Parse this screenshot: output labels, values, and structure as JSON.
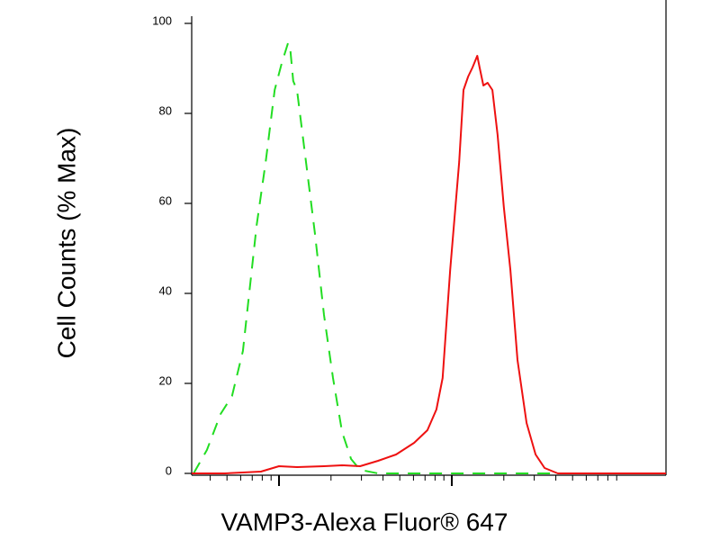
{
  "chart_data": {
    "type": "line",
    "x_label": "VAMP3-Alexa Fluor® 647",
    "y_label": "Cell Counts (% Max)",
    "xlim": [
      0,
      100
    ],
    "ylim": [
      0,
      100
    ],
    "yticks": [
      0,
      20,
      40,
      60,
      80,
      100
    ],
    "series": [
      {
        "color": "#22dd22",
        "dashed": true,
        "x": [
          0.4,
          3.2,
          6.1,
          8.5,
          10.8,
          13.7,
          15.6,
          17.5,
          19.0,
          20.3,
          20.7,
          21.4,
          22.2,
          24.1,
          26.0,
          27.9,
          29.8,
          31.7,
          33.6,
          35.5,
          39.3,
          100
        ],
        "values": [
          0,
          5.2,
          13.2,
          17.2,
          27.2,
          55.2,
          69.2,
          85.2,
          91.2,
          95.6,
          95.2,
          87.2,
          85.2,
          69.2,
          53.2,
          35.2,
          21.2,
          9.2,
          3.2,
          0.8,
          0,
          0
        ]
      },
      {
        "color": "#ee1111",
        "dashed": false,
        "x": [
          0,
          7.0,
          14.6,
          18.4,
          22.2,
          27.9,
          31.7,
          35.5,
          39.3,
          43.1,
          46.9,
          49.7,
          51.6,
          52.9,
          54.5,
          56.4,
          57.3,
          58.3,
          59.2,
          60.2,
          60.7,
          61.5,
          62.4,
          63.4,
          64.5,
          65.8,
          67.2,
          68.7,
          70.6,
          72.5,
          74.4,
          77.2,
          100
        ],
        "values": [
          0,
          0,
          0.4,
          1.6,
          1.4,
          1.6,
          1.8,
          1.6,
          2.8,
          4.2,
          6.8,
          9.6,
          14.2,
          21.2,
          45.2,
          69.2,
          85.2,
          88.2,
          90.2,
          92.8,
          90.2,
          86.2,
          86.8,
          85.2,
          75.2,
          59.2,
          45.2,
          25.2,
          11.2,
          4.2,
          1.2,
          0,
          0
        ]
      }
    ]
  }
}
